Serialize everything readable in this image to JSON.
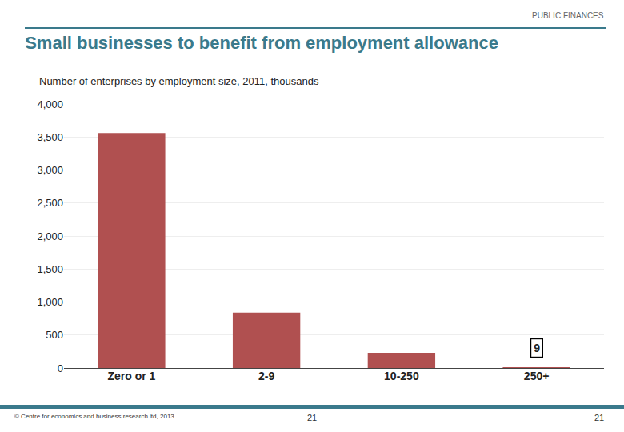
{
  "chart_data": {
    "type": "bar",
    "title": "Small businesses to benefit from employment allowance",
    "subtitle": "Number of enterprises by employment size, 2011, thousands",
    "header": "PUBLIC FINANCES",
    "footer": [
      "© Centre for economics and business research ltd, 2013",
      "21",
      "21"
    ],
    "categories": [
      "Zero or 1",
      "2-9",
      "10-250",
      "250+"
    ],
    "values": [
      3560,
      840,
      230,
      9
    ],
    "color": "#b05050",
    "annotations": [
      {
        "category": "250+",
        "value": 9,
        "text": "9"
      }
    ],
    "ylim": [
      0,
      4000
    ],
    "yticks": [
      0,
      500,
      {
        "value": 1000,
        "label": "1,000"
      },
      {
        "value": 1500,
        "label": "1,500"
      },
      {
        "value": 2000,
        "label": "2,000"
      },
      {
        "value": 2500,
        "label": "2,500"
      },
      {
        "value": 3000,
        "label": "3,000"
      },
      {
        "value": 3500,
        "label": "3,500"
      },
      {
        "value": 4000,
        "label": "4,000"
      }
    ],
    "grid": true
  }
}
